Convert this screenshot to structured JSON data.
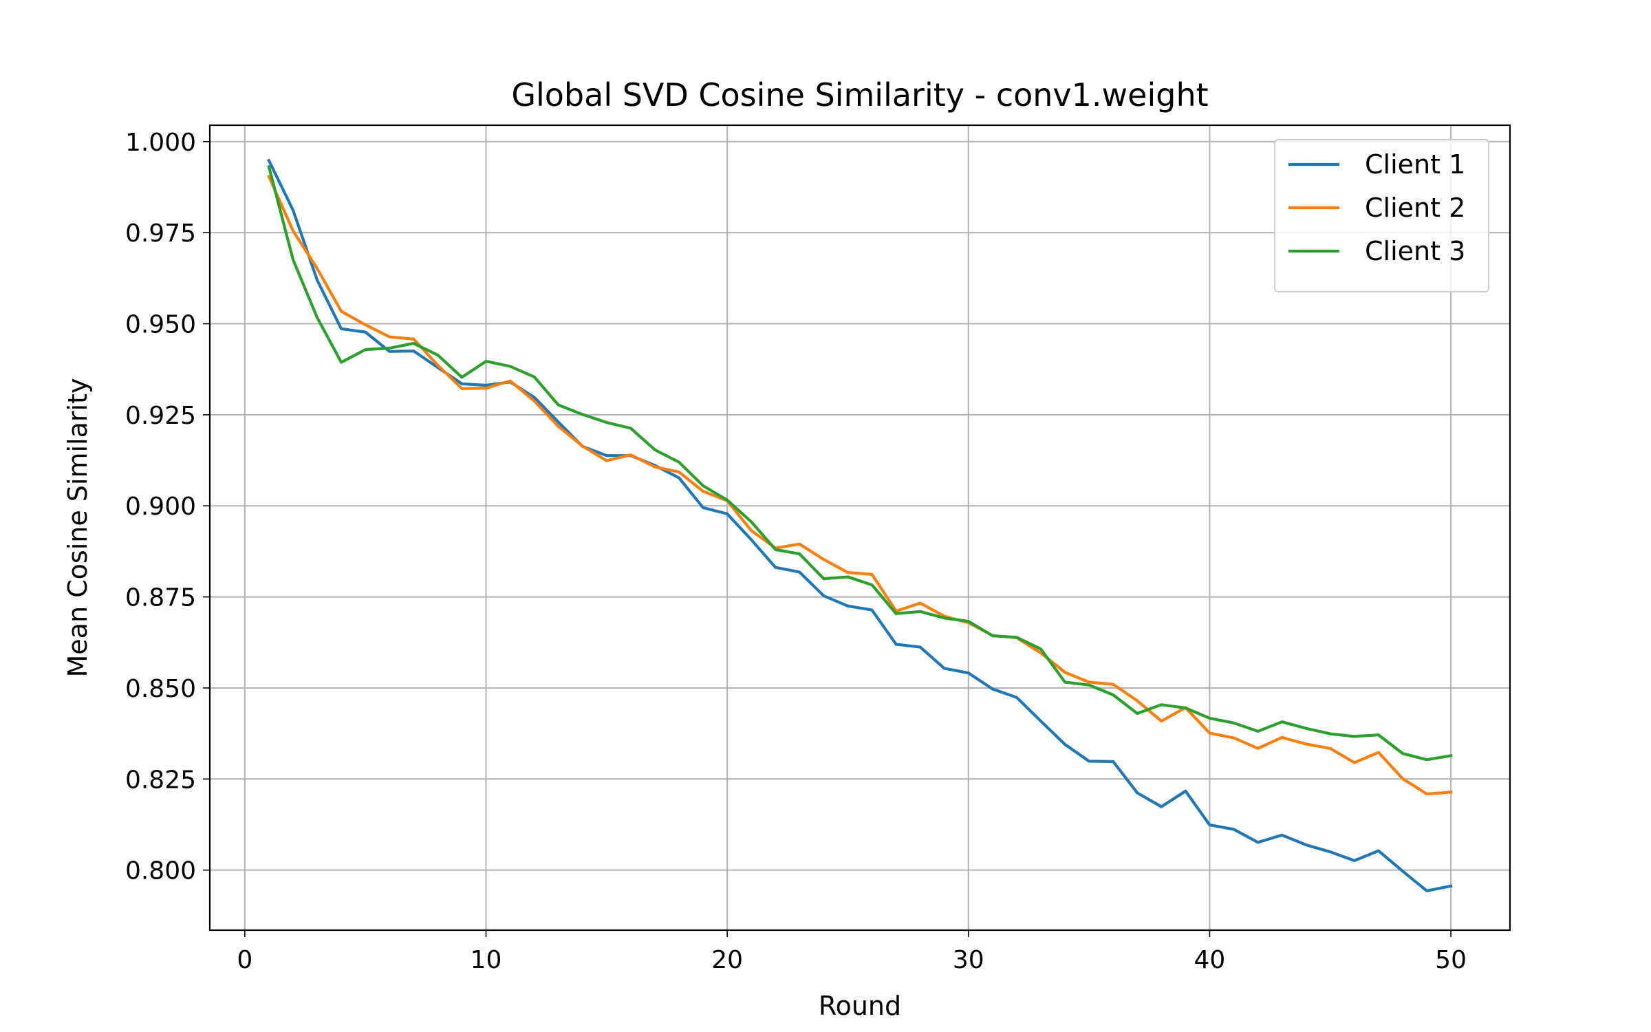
{
  "chart_data": {
    "type": "line",
    "title": "Global SVD Cosine Similarity - conv1.weight",
    "xlabel": "Round",
    "ylabel": "Mean Cosine Similarity",
    "xlim": [
      -1.45,
      52.45
    ],
    "ylim": [
      0.7835,
      1.0045
    ],
    "xticks": [
      0,
      10,
      20,
      30,
      40,
      50
    ],
    "xtick_labels": [
      "0",
      "10",
      "20",
      "30",
      "40",
      "50"
    ],
    "yticks": [
      0.8,
      0.825,
      0.85,
      0.875,
      0.9,
      0.925,
      0.95,
      0.975,
      1.0
    ],
    "ytick_labels": [
      "0.800",
      "0.825",
      "0.850",
      "0.875",
      "0.900",
      "0.925",
      "0.950",
      "0.975",
      "1.000"
    ],
    "grid": true,
    "legend_position": "top-right",
    "x": [
      1,
      2,
      3,
      4,
      5,
      6,
      7,
      8,
      9,
      10,
      11,
      12,
      13,
      14,
      15,
      16,
      17,
      18,
      19,
      20,
      21,
      22,
      23,
      24,
      25,
      26,
      27,
      28,
      29,
      30,
      31,
      32,
      33,
      34,
      35,
      36,
      37,
      38,
      39,
      40,
      41,
      42,
      43,
      44,
      45,
      46,
      47,
      48,
      49,
      50
    ],
    "series": [
      {
        "name": "Client 1",
        "color": "#1f77b4",
        "values": [
          0.9948,
          0.9812,
          0.962,
          0.9486,
          0.9477,
          0.9424,
          0.9425,
          0.938,
          0.9335,
          0.9331,
          0.934,
          0.9298,
          0.923,
          0.9163,
          0.9138,
          0.9138,
          0.9111,
          0.9077,
          0.8995,
          0.8978,
          0.8907,
          0.8831,
          0.8818,
          0.8753,
          0.8725,
          0.8714,
          0.862,
          0.8612,
          0.8554,
          0.8541,
          0.8497,
          0.8474,
          0.8409,
          0.8345,
          0.8299,
          0.8298,
          0.8212,
          0.8174,
          0.8217,
          0.8124,
          0.8112,
          0.8076,
          0.8096,
          0.8069,
          0.805,
          0.8026,
          0.8053,
          0.7997,
          0.7943,
          0.7956
        ]
      },
      {
        "name": "Client 2",
        "color": "#ff7f0e",
        "values": [
          0.9904,
          0.9755,
          0.9652,
          0.9534,
          0.9497,
          0.9464,
          0.9458,
          0.9386,
          0.9322,
          0.9323,
          0.9343,
          0.9288,
          0.9218,
          0.9164,
          0.9124,
          0.914,
          0.9107,
          0.9093,
          0.904,
          0.9014,
          0.8932,
          0.8884,
          0.8895,
          0.8853,
          0.8817,
          0.8812,
          0.8711,
          0.8733,
          0.8697,
          0.8679,
          0.8644,
          0.8638,
          0.8596,
          0.8543,
          0.8516,
          0.851,
          0.8465,
          0.8409,
          0.8446,
          0.8376,
          0.8363,
          0.8334,
          0.8364,
          0.8346,
          0.8334,
          0.8295,
          0.8323,
          0.8251,
          0.8209,
          0.8214
        ]
      },
      {
        "name": "Client 3",
        "color": "#2ca02c",
        "values": [
          0.9931,
          0.9676,
          0.9517,
          0.9394,
          0.9429,
          0.9433,
          0.9446,
          0.9414,
          0.9353,
          0.9397,
          0.9383,
          0.9354,
          0.9277,
          0.9251,
          0.9229,
          0.9213,
          0.9154,
          0.912,
          0.9055,
          0.9016,
          0.8956,
          0.888,
          0.8868,
          0.88,
          0.8805,
          0.8783,
          0.8704,
          0.871,
          0.8692,
          0.8683,
          0.8643,
          0.8639,
          0.8607,
          0.8516,
          0.8508,
          0.8481,
          0.843,
          0.8454,
          0.8445,
          0.8417,
          0.8404,
          0.8381,
          0.8407,
          0.8389,
          0.8374,
          0.8367,
          0.8371,
          0.832,
          0.8303,
          0.8314
        ]
      }
    ]
  }
}
